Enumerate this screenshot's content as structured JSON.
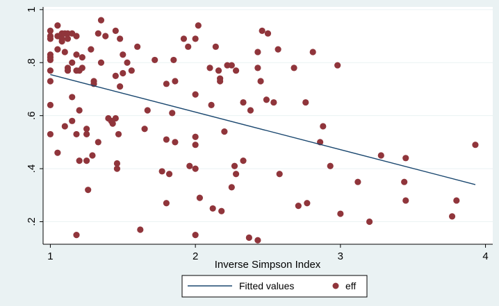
{
  "chart_data": {
    "type": "scatter",
    "xlabel": "Inverse Simpson Index",
    "ylabel": "",
    "xlim": [
      0.95,
      4.05
    ],
    "ylim": [
      0.115,
      1.01
    ],
    "x_ticks": [
      1,
      2,
      3,
      4
    ],
    "x_tick_labels": [
      "1",
      "2",
      "3",
      "4"
    ],
    "y_ticks": [
      0.2,
      0.4,
      0.6,
      0.8,
      1.0
    ],
    "y_tick_labels": [
      ".2",
      ".4",
      ".6",
      ".8",
      "1"
    ],
    "grid": "horizontal",
    "legend_position": "bottom",
    "colors": {
      "background": "#eaf2f3",
      "plot_area": "#ffffff",
      "line": "#1a476f",
      "points": "#90353b"
    },
    "series": [
      {
        "name": "Fitted values",
        "kind": "line",
        "x": [
          1.0,
          3.93
        ],
        "y": [
          0.755,
          0.34
        ]
      },
      {
        "name": "eff",
        "kind": "scatter",
        "points": [
          [
            1.0,
            0.92
          ],
          [
            1.0,
            0.9
          ],
          [
            1.0,
            0.89
          ],
          [
            1.0,
            0.83
          ],
          [
            1.0,
            0.82
          ],
          [
            1.0,
            0.81
          ],
          [
            1.0,
            0.77
          ],
          [
            1.0,
            0.73
          ],
          [
            1.0,
            0.64
          ],
          [
            1.0,
            0.53
          ],
          [
            1.05,
            0.94
          ],
          [
            1.05,
            0.9
          ],
          [
            1.05,
            0.85
          ],
          [
            1.05,
            0.46
          ],
          [
            1.08,
            0.91
          ],
          [
            1.08,
            0.89
          ],
          [
            1.08,
            0.88
          ],
          [
            1.1,
            0.91
          ],
          [
            1.1,
            0.84
          ],
          [
            1.1,
            0.56
          ],
          [
            1.12,
            0.91
          ],
          [
            1.12,
            0.89
          ],
          [
            1.12,
            0.78
          ],
          [
            1.12,
            0.77
          ],
          [
            1.15,
            0.91
          ],
          [
            1.15,
            0.8
          ],
          [
            1.15,
            0.67
          ],
          [
            1.15,
            0.58
          ],
          [
            1.18,
            0.9
          ],
          [
            1.18,
            0.83
          ],
          [
            1.18,
            0.77
          ],
          [
            1.18,
            0.53
          ],
          [
            1.18,
            0.15
          ],
          [
            1.2,
            0.77
          ],
          [
            1.2,
            0.62
          ],
          [
            1.2,
            0.43
          ],
          [
            1.22,
            0.82
          ],
          [
            1.22,
            0.78
          ],
          [
            1.25,
            0.55
          ],
          [
            1.25,
            0.53
          ],
          [
            1.25,
            0.43
          ],
          [
            1.26,
            0.32
          ],
          [
            1.28,
            0.85
          ],
          [
            1.29,
            0.45
          ],
          [
            1.3,
            0.73
          ],
          [
            1.3,
            0.72
          ],
          [
            1.33,
            0.91
          ],
          [
            1.33,
            0.5
          ],
          [
            1.35,
            0.96
          ],
          [
            1.35,
            0.8
          ],
          [
            1.38,
            0.9
          ],
          [
            1.4,
            0.59
          ],
          [
            1.42,
            0.58
          ],
          [
            1.43,
            0.57
          ],
          [
            1.45,
            0.92
          ],
          [
            1.45,
            0.75
          ],
          [
            1.45,
            0.59
          ],
          [
            1.46,
            0.42
          ],
          [
            1.46,
            0.4
          ],
          [
            1.48,
            0.89
          ],
          [
            1.48,
            0.71
          ],
          [
            1.47,
            0.53
          ],
          [
            1.5,
            0.83
          ],
          [
            1.5,
            0.76
          ],
          [
            1.53,
            0.8
          ],
          [
            1.56,
            0.77
          ],
          [
            1.6,
            0.86
          ],
          [
            1.62,
            0.17
          ],
          [
            1.65,
            0.55
          ],
          [
            1.67,
            0.62
          ],
          [
            1.72,
            0.81
          ],
          [
            1.77,
            0.39
          ],
          [
            1.8,
            0.72
          ],
          [
            1.8,
            0.51
          ],
          [
            1.8,
            0.27
          ],
          [
            1.82,
            0.38
          ],
          [
            1.84,
            0.61
          ],
          [
            1.85,
            0.81
          ],
          [
            1.86,
            0.73
          ],
          [
            1.86,
            0.5
          ],
          [
            1.92,
            0.89
          ],
          [
            1.95,
            0.86
          ],
          [
            1.96,
            0.41
          ],
          [
            2.0,
            0.89
          ],
          [
            2.0,
            0.68
          ],
          [
            2.0,
            0.52
          ],
          [
            2.0,
            0.49
          ],
          [
            2.0,
            0.4
          ],
          [
            2.0,
            0.15
          ],
          [
            2.02,
            0.94
          ],
          [
            2.03,
            0.29
          ],
          [
            2.1,
            0.78
          ],
          [
            2.11,
            0.64
          ],
          [
            2.12,
            0.25
          ],
          [
            2.14,
            0.86
          ],
          [
            2.16,
            0.77
          ],
          [
            2.17,
            0.74
          ],
          [
            2.17,
            0.73
          ],
          [
            2.18,
            0.24
          ],
          [
            2.2,
            0.54
          ],
          [
            2.22,
            0.79
          ],
          [
            2.25,
            0.79
          ],
          [
            2.25,
            0.33
          ],
          [
            2.27,
            0.41
          ],
          [
            2.28,
            0.77
          ],
          [
            2.28,
            0.38
          ],
          [
            2.33,
            0.65
          ],
          [
            2.33,
            0.43
          ],
          [
            2.37,
            0.14
          ],
          [
            2.38,
            0.62
          ],
          [
            2.43,
            0.84
          ],
          [
            2.43,
            0.78
          ],
          [
            2.45,
            0.73
          ],
          [
            2.43,
            0.13
          ],
          [
            2.46,
            0.92
          ],
          [
            2.49,
            0.66
          ],
          [
            2.5,
            0.91
          ],
          [
            2.54,
            0.65
          ],
          [
            2.57,
            0.85
          ],
          [
            2.58,
            0.38
          ],
          [
            2.68,
            0.78
          ],
          [
            2.71,
            0.26
          ],
          [
            2.76,
            0.65
          ],
          [
            2.77,
            0.27
          ],
          [
            2.81,
            0.84
          ],
          [
            2.86,
            0.5
          ],
          [
            2.88,
            0.56
          ],
          [
            2.93,
            0.41
          ],
          [
            2.98,
            0.79
          ],
          [
            3.0,
            0.23
          ],
          [
            3.12,
            0.35
          ],
          [
            3.2,
            0.2
          ],
          [
            3.28,
            0.45
          ],
          [
            3.44,
            0.35
          ],
          [
            3.45,
            0.44
          ],
          [
            3.45,
            0.28
          ],
          [
            3.77,
            0.22
          ],
          [
            3.8,
            0.28
          ],
          [
            3.93,
            0.49
          ]
        ]
      }
    ]
  }
}
